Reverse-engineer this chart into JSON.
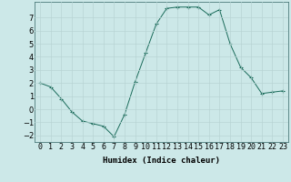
{
  "x": [
    0,
    1,
    2,
    3,
    4,
    5,
    6,
    7,
    8,
    9,
    10,
    11,
    12,
    13,
    14,
    15,
    16,
    17,
    18,
    19,
    20,
    21,
    22,
    23
  ],
  "y": [
    2,
    1.7,
    0.8,
    -0.2,
    -0.9,
    -1.1,
    -1.3,
    -2.1,
    -0.4,
    2.1,
    4.3,
    6.5,
    7.7,
    7.8,
    7.8,
    7.8,
    7.2,
    7.6,
    5.0,
    3.2,
    2.4,
    1.2,
    1.3,
    1.4
  ],
  "line_color": "#1a6b5a",
  "marker": "+",
  "bg_color": "#cce8e8",
  "grid_color": "#b8d4d4",
  "xlabel": "Humidex (Indice chaleur)",
  "ylim": [
    -2.5,
    8.2
  ],
  "xlim": [
    -0.5,
    23.5
  ],
  "yticks": [
    -2,
    -1,
    0,
    1,
    2,
    3,
    4,
    5,
    6,
    7
  ],
  "xtick_labels": [
    "0",
    "1",
    "2",
    "3",
    "4",
    "5",
    "6",
    "7",
    "8",
    "9",
    "10",
    "11",
    "12",
    "13",
    "14",
    "15",
    "16",
    "17",
    "18",
    "19",
    "20",
    "21",
    "22",
    "23"
  ],
  "label_fontsize": 6.5,
  "tick_fontsize": 6.0
}
